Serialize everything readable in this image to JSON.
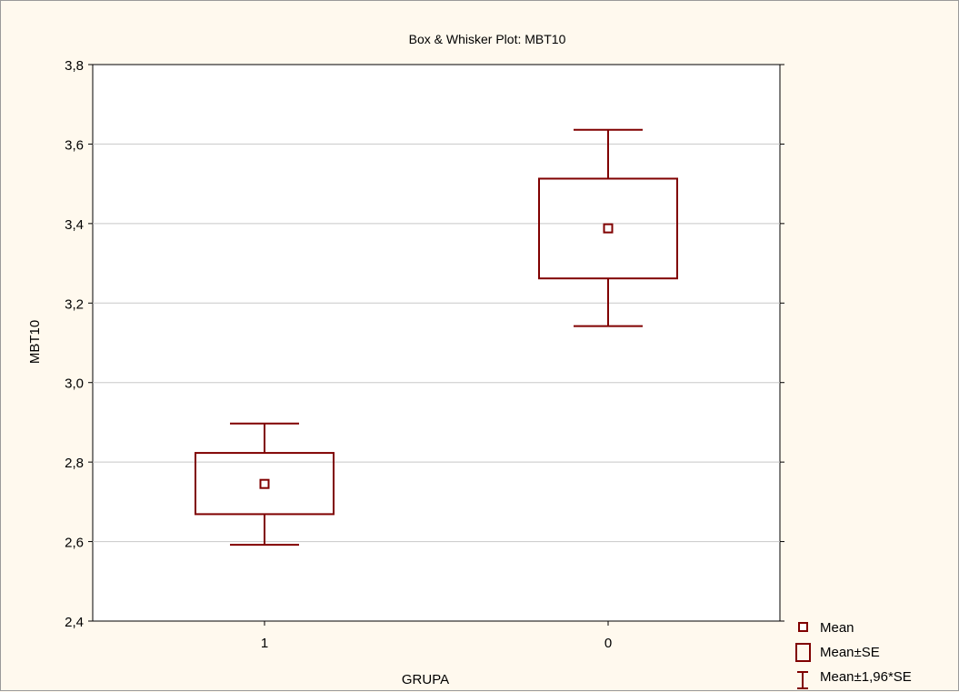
{
  "chart_data": {
    "type": "box",
    "title": "Box & Whisker Plot: MBT10",
    "xlabel": "GRUPA",
    "ylabel": "MBT10",
    "ylim": [
      2.4,
      3.8
    ],
    "yticks": [
      2.4,
      2.6,
      2.8,
      3.0,
      3.2,
      3.4,
      3.6,
      3.8
    ],
    "ytick_labels": [
      "2,4",
      "2,6",
      "2,8",
      "3,0",
      "3,2",
      "3,4",
      "3,6",
      "3,8"
    ],
    "grid": true,
    "categories": [
      "1",
      "0"
    ],
    "groups": [
      {
        "category": "1",
        "mean": 2.745,
        "se_low": 2.669,
        "se_high": 2.823,
        "ci_low": 2.592,
        "ci_high": 2.897
      },
      {
        "category": "0",
        "mean": 3.388,
        "se_low": 3.262,
        "se_high": 3.513,
        "ci_low": 3.142,
        "ci_high": 3.636
      }
    ],
    "legend": {
      "position": "bottom-right",
      "entries": [
        "Mean",
        "Mean±SE",
        "Mean±1,96*SE"
      ]
    },
    "colors": {
      "marks": "#800000",
      "grid": "#c8c8c8",
      "background": "#fff9ee",
      "plot_background": "#ffffff"
    }
  }
}
